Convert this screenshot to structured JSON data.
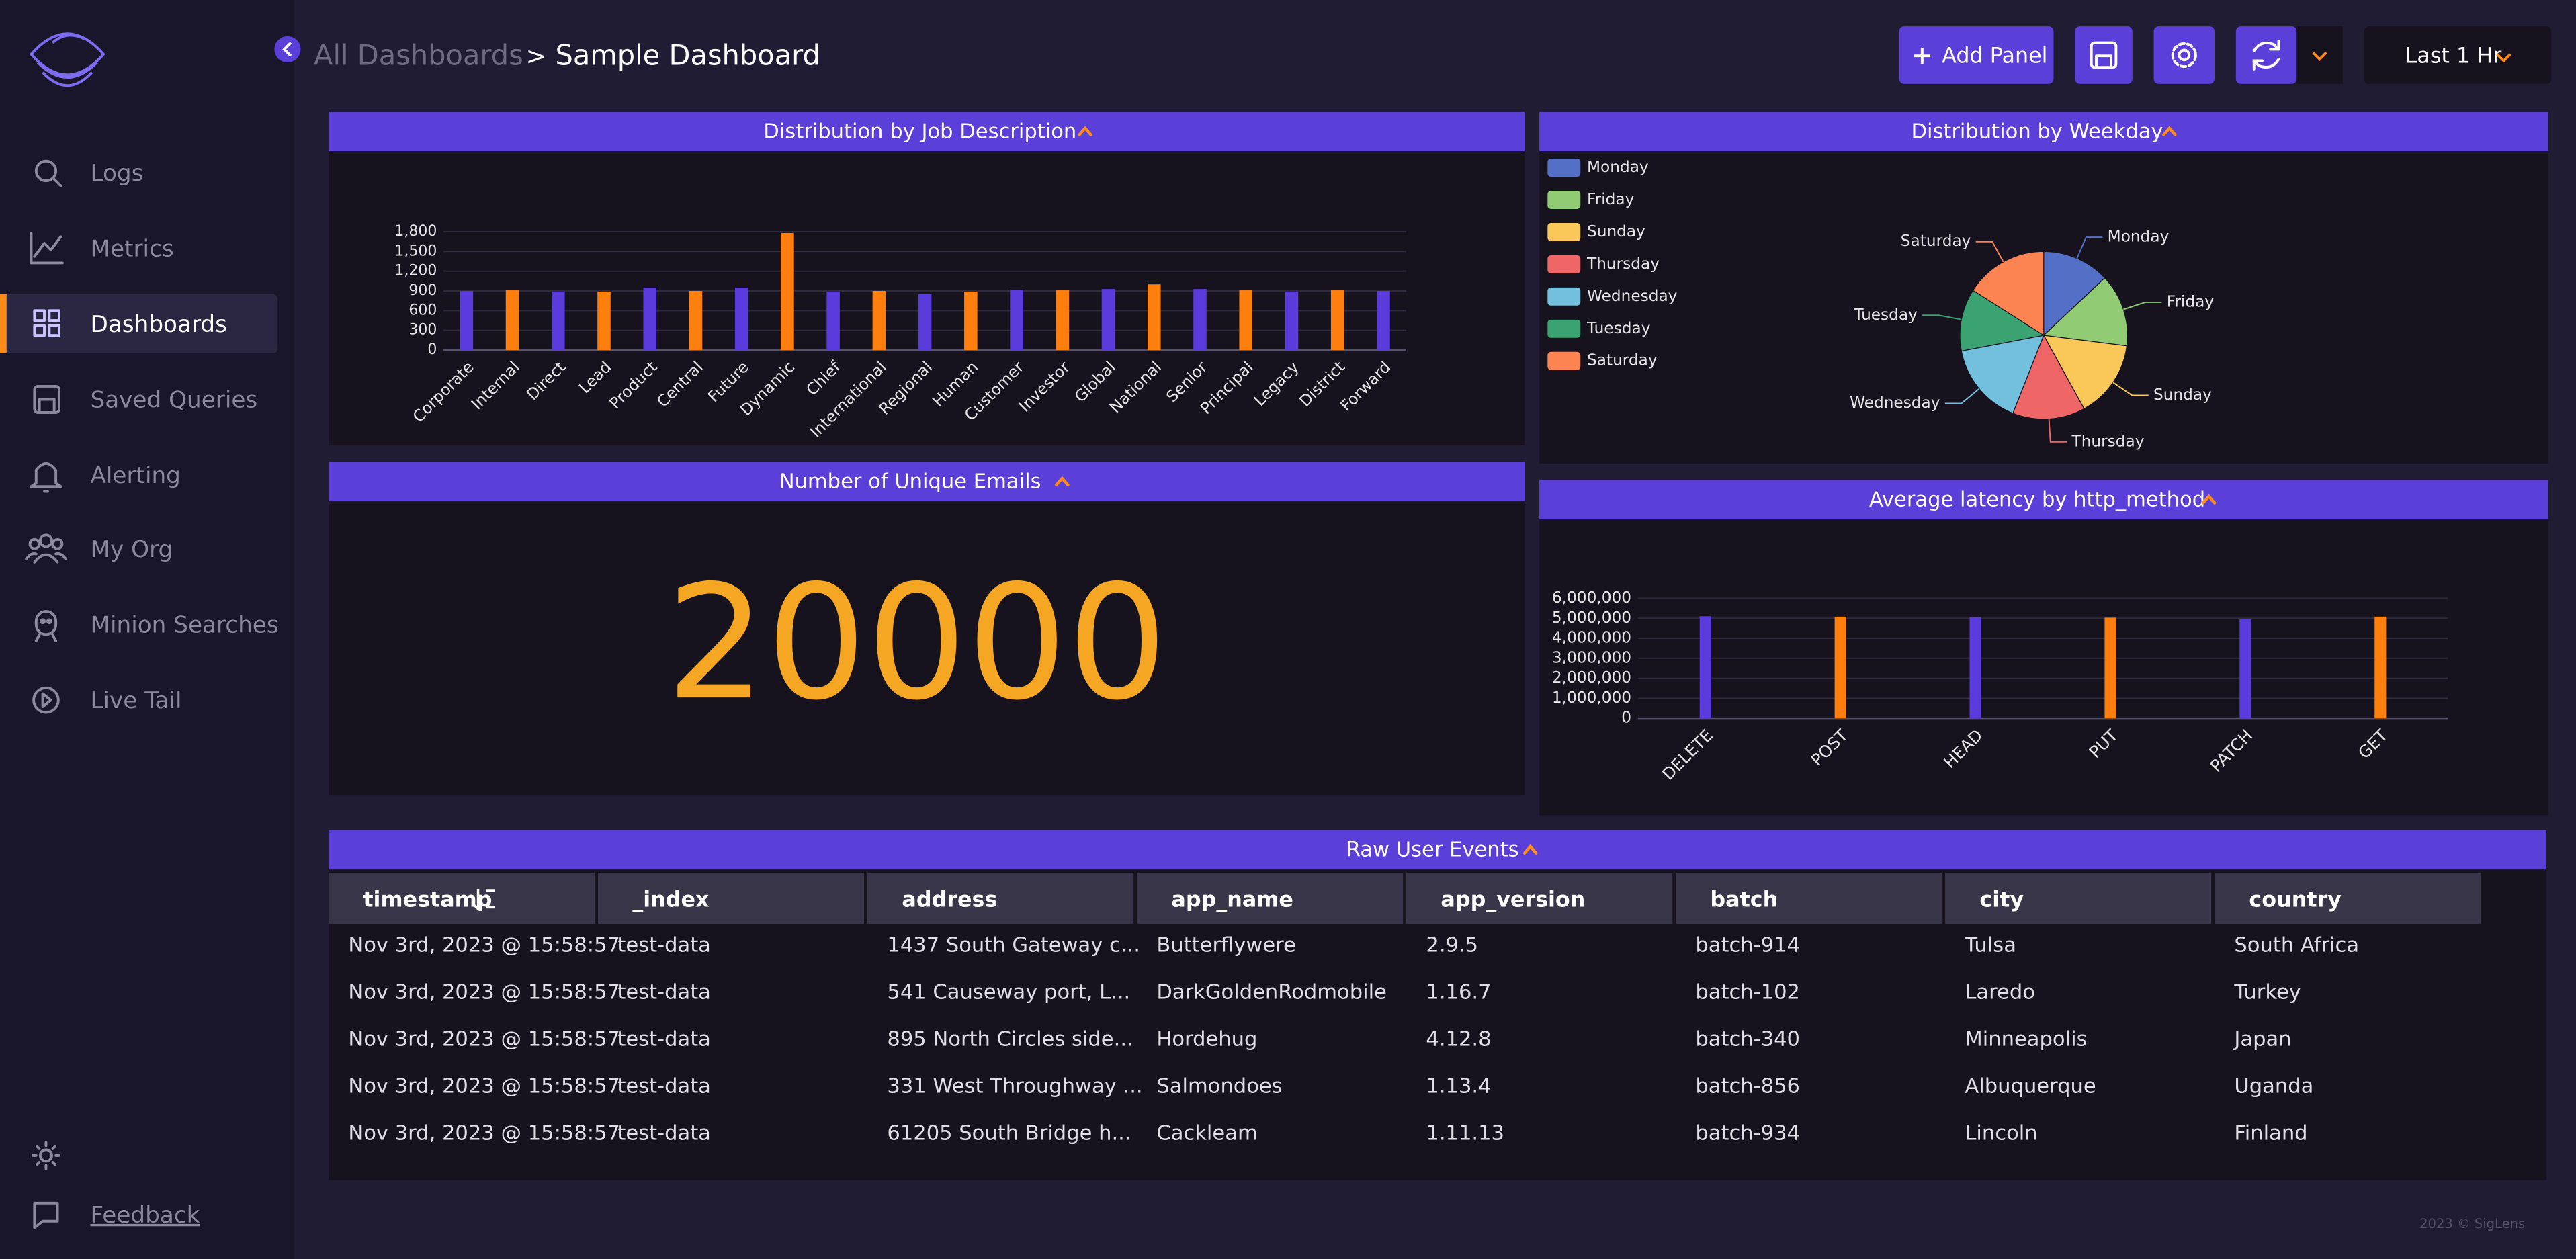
{
  "sidebar": {
    "nav": [
      "Logs",
      "Metrics",
      "Dashboards",
      "Saved Queries",
      "Alerting",
      "My Org",
      "Minion Searches",
      "Live Tail"
    ],
    "feedback": "Feedback"
  },
  "header": {
    "breadcrumb": "All Dashboards",
    "separator": ">",
    "title": "Sample Dashboard",
    "add_panel": "Add Panel",
    "time_range": "Last 1 Hr"
  },
  "job_panel": {
    "title": "Distribution by Job Description",
    "chart_data": {
      "type": "bar",
      "categories": [
        "Corporate",
        "Internal",
        "Direct",
        "Lead",
        "Product",
        "Central",
        "Future",
        "Dynamic",
        "Chief",
        "International",
        "Regional",
        "Human",
        "Customer",
        "Investor",
        "Global",
        "National",
        "Senior",
        "Principal",
        "Legacy",
        "District",
        "Forward"
      ],
      "values": [
        900,
        910,
        890,
        890,
        950,
        900,
        950,
        1780,
        890,
        900,
        850,
        890,
        920,
        910,
        930,
        1000,
        930,
        910,
        890,
        910,
        900
      ],
      "colors": [
        "#5a3bdc",
        "#ff7f0e"
      ],
      "ylim": [
        0,
        1800
      ],
      "yticks": [
        0,
        300,
        600,
        900,
        {
          "value": 1200,
          "label": "1,200"
        },
        {
          "value": 1500,
          "label": "1,500"
        },
        {
          "value": 1800,
          "label": "1,800"
        }
      ],
      "grid": true
    }
  },
  "weekday_panel": {
    "title": "Distribution by Weekday",
    "chart_data": {
      "type": "pie",
      "categories": [
        "Monday",
        "Friday",
        "Sunday",
        "Thursday",
        "Wednesday",
        "Tuesday",
        "Saturday"
      ],
      "values": [
        13,
        14,
        15,
        14,
        16,
        12,
        16
      ],
      "colors": [
        "#5470c6",
        "#91cc75",
        "#fac858",
        "#ee6666",
        "#73c0de",
        "#3ba272",
        "#fc8452"
      ]
    }
  },
  "emails_panel": {
    "title": "Number of Unique Emails",
    "value": 20000
  },
  "latency_panel": {
    "title": "Average latency by http_method",
    "chart_data": {
      "type": "bar",
      "categories": [
        "DELETE",
        "POST",
        "HEAD",
        "PUT",
        "PATCH",
        "GET"
      ],
      "values": [
        5100000,
        5080000,
        5050000,
        5030000,
        4950000,
        5080000
      ],
      "colors": [
        "#5a3bdc",
        "#ff7f0e"
      ],
      "ylim": [
        0,
        6000000
      ],
      "yticks": [
        0,
        {
          "value": 1000000,
          "label": "1,000,000"
        },
        {
          "value": 2000000,
          "label": "2,000,000"
        },
        {
          "value": 3000000,
          "label": "3,000,000"
        },
        {
          "value": 4000000,
          "label": "4,000,000"
        },
        {
          "value": 5000000,
          "label": "5,000,000"
        },
        {
          "value": 6000000,
          "label": "6,000,000"
        }
      ],
      "grid": true
    }
  },
  "events_table": {
    "title": "Raw User Events",
    "columns": [
      "timestamp",
      "_index",
      "address",
      "app_name",
      "app_version",
      "batch",
      "city",
      "country"
    ],
    "rows": [
      [
        "Nov 3rd, 2023 @ 15:58:57",
        "test-data",
        "1437 South Gateway c...",
        "Butterflywere",
        "2.9.5",
        "batch-914",
        "Tulsa",
        "South Africa"
      ],
      [
        "Nov 3rd, 2023 @ 15:58:57",
        "test-data",
        "541 Causeway port, L...",
        "DarkGoldenRodmobile",
        "1.16.7",
        "batch-102",
        "Laredo",
        "Turkey"
      ],
      [
        "Nov 3rd, 2023 @ 15:58:57",
        "test-data",
        "895 North Circles side...",
        "Hordehug",
        "4.12.8",
        "batch-340",
        "Minneapolis",
        "Japan"
      ],
      [
        "Nov 3rd, 2023 @ 15:58:57",
        "test-data",
        "331 West Throughway ...",
        "Salmondoes",
        "1.13.4",
        "batch-856",
        "Albuquerque",
        "Uganda"
      ],
      [
        "Nov 3rd, 2023 @ 15:58:57",
        "test-data",
        "61205 South Bridge h...",
        "Cackleam",
        "1.11.13",
        "batch-934",
        "Lincoln",
        "Finland"
      ]
    ]
  },
  "footer": "2023 © SigLens"
}
